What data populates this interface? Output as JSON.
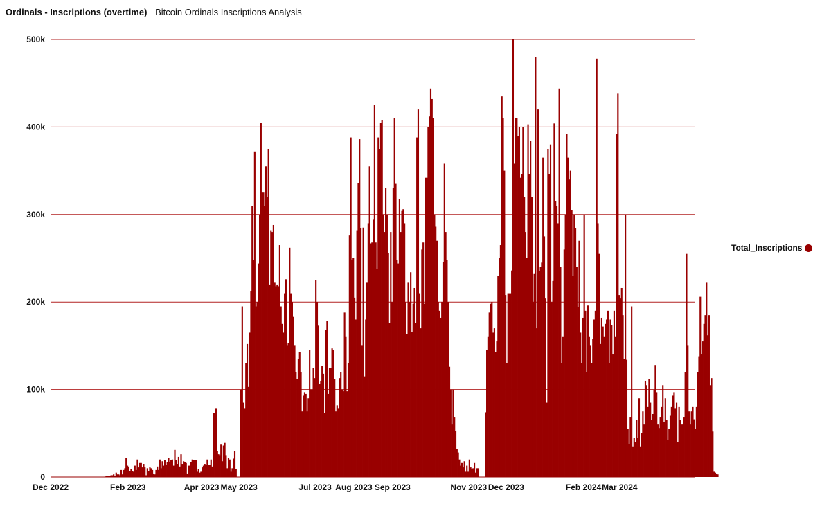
{
  "header": {
    "title": "Ordinals - Inscriptions (overtime)",
    "subtitle": "Bitcoin Ordinals Inscriptions Analysis"
  },
  "legend": {
    "label": "Total_Inscriptions",
    "color": "#990000"
  },
  "chart_data": {
    "type": "bar",
    "grid": true,
    "legend_position": "right",
    "bar_color": "#990000",
    "grid_color": "#b22222",
    "ylim": [
      0,
      500000
    ],
    "y_ticks": [
      {
        "value": 0,
        "label": "0"
      },
      {
        "value": 100000,
        "label": "100k"
      },
      {
        "value": 200000,
        "label": "200k"
      },
      {
        "value": 300000,
        "label": "300k"
      },
      {
        "value": 400000,
        "label": "400k"
      },
      {
        "value": 500000,
        "label": "500k"
      }
    ],
    "x_range": [
      "2022-12-01",
      "2024-04-30"
    ],
    "x_ticks": [
      {
        "date": "2022-12-01",
        "label": "Dec 2022"
      },
      {
        "date": "2023-02-01",
        "label": "Feb 2023"
      },
      {
        "date": "2023-04-01",
        "label": "Apr 2023"
      },
      {
        "date": "2023-05-01",
        "label": "May 2023"
      },
      {
        "date": "2023-07-01",
        "label": "Jul 2023"
      },
      {
        "date": "2023-08-01",
        "label": "Aug 2023"
      },
      {
        "date": "2023-09-01",
        "label": "Sep 2023"
      },
      {
        "date": "2023-11-01",
        "label": "Nov 2023"
      },
      {
        "date": "2023-12-01",
        "label": "Dec 2023"
      },
      {
        "date": "2024-02-01",
        "label": "Feb 2024"
      },
      {
        "date": "2024-03-01",
        "label": "Mar 2024"
      }
    ],
    "series": [
      {
        "name": "Total_Inscriptions",
        "start": "2022-12-14",
        "values": [
          0,
          0,
          0,
          0,
          0,
          0,
          0,
          0,
          0,
          0,
          0,
          0,
          0,
          0,
          0,
          0,
          0,
          0,
          0,
          0,
          0,
          0,
          0,
          0,
          0,
          0,
          0,
          0,
          0,
          0,
          0,
          1000,
          1000,
          1000,
          1000,
          2000,
          2000,
          3000,
          1000,
          5000,
          3000,
          3000,
          2000,
          8000,
          3000,
          8000,
          10000,
          22000,
          13000,
          12000,
          7000,
          9000,
          7000,
          6000,
          13000,
          8000,
          20000,
          11000,
          16000,
          16000,
          11000,
          15000,
          11000,
          2000,
          10000,
          7000,
          11000,
          10000,
          8000,
          4000,
          3000,
          8000,
          12000,
          8000,
          20000,
          10000,
          18000,
          13000,
          19000,
          14000,
          17000,
          22000,
          17000,
          19000,
          20000,
          13000,
          31000,
          19000,
          15000,
          23000,
          12000,
          26000,
          15000,
          18000,
          17000,
          16000,
          4000,
          13000,
          13000,
          17000,
          20000,
          19000,
          19000,
          19000,
          6000,
          9000,
          5000,
          6000,
          11000,
          13000,
          15000,
          14000,
          20000,
          14000,
          14000,
          20000,
          12000,
          73000,
          73000,
          78000,
          30000,
          26000,
          25000,
          37000,
          18000,
          36000,
          39000,
          25000,
          10000,
          22000,
          20000,
          6000,
          10000,
          21000,
          30000,
          9000,
          0,
          0,
          0,
          100000,
          195000,
          85000,
          78000,
          130000,
          152000,
          103000,
          165000,
          212000,
          310000,
          248000,
          372000,
          195000,
          200000,
          244000,
          300000,
          405000,
          325000,
          325000,
          310000,
          355000,
          320000,
          375000,
          220000,
          282000,
          280000,
          288000,
          222000,
          218000,
          220000,
          218000,
          265000,
          195000,
          175000,
          165000,
          210000,
          226000,
          150000,
          153000,
          262000,
          210000,
          200000,
          183000,
          150000,
          120000,
          112000,
          135000,
          143000,
          120000,
          75000,
          93000,
          97000,
          95000,
          75000,
          90000,
          145000,
          100000,
          100000,
          125000,
          113000,
          225000,
          200000,
          173000,
          106000,
          110000,
          127000,
          118000,
          73000,
          168000,
          178000,
          95000,
          125000,
          125000,
          147000,
          145000,
          112000,
          75000,
          82000,
          78000,
          113000,
          120000,
          100000,
          98000,
          188000,
          160000,
          98000,
          130000,
          276000,
          388000,
          248000,
          250000,
          205000,
          180000,
          282000,
          336000,
          386000,
          284000,
          150000,
          285000,
          115000,
          180000,
          222000,
          290000,
          355000,
          267000,
          268000,
          294000,
          425000,
          268000,
          238000,
          388000,
          375000,
          405000,
          408000,
          300000,
          280000,
          330000,
          300000,
          256000,
          176000,
          280000,
          200000,
          330000,
          410000,
          335000,
          248000,
          244000,
          318000,
          280000,
          304000,
          306000,
          290000,
          200000,
          163000,
          222000,
          200000,
          234000,
          166000,
          198000,
          216000,
          176000,
          388000,
          420000,
          210000,
          170000,
          260000,
          268000,
          198000,
          342000,
          342000,
          400000,
          412000,
          444000,
          432000,
          410000,
          300000,
          286000,
          270000,
          200000,
          190000,
          182000,
          200000,
          246000,
          358000,
          280000,
          248000,
          200000,
          126000,
          100000,
          60000,
          100000,
          68000,
          53000,
          32000,
          28000,
          20000,
          13000,
          16000,
          11000,
          18000,
          6000,
          13000,
          6000,
          20000,
          11000,
          9000,
          10000,
          16000,
          5000,
          10000,
          10000,
          0,
          0,
          0,
          0,
          0,
          74000,
          145000,
          160000,
          188000,
          198000,
          200000,
          165000,
          170000,
          143000,
          155000,
          230000,
          250000,
          265000,
          435000,
          410000,
          350000,
          208000,
          130000,
          210000,
          210000,
          210000,
          236000,
          500000,
          358000,
          410000,
          410000,
          390000,
          400000,
          342000,
          346000,
          400000,
          320000,
          280000,
          250000,
          403000,
          346000,
          384000,
          320000,
          200000,
          232000,
          480000,
          170000,
          420000,
          235000,
          240000,
          245000,
          365000,
          275000,
          204000,
          85000,
          375000,
          346000,
          380000,
          200000,
          224000,
          404000,
          315000,
          310000,
          290000,
          444000,
          240000,
          130000,
          160000,
          260000,
          300000,
          392000,
          365000,
          340000,
          350000,
          305000,
          230000,
          300000,
          284000,
          240000,
          194000,
          270000,
          165000,
          130000,
          182000,
          300000,
          190000,
          120000,
          196000,
          160000,
          150000,
          130000,
          158000,
          180000,
          190000,
          478000,
          290000,
          255000,
          152000,
          182000,
          172000,
          160000,
          175000,
          180000,
          190000,
          130000,
          180000,
          174000,
          140000,
          190000,
          160000,
          392000,
          438000,
          208000,
          204000,
          216000,
          185000,
          135000,
          300000,
          134000,
          55000,
          38000,
          68000,
          195000,
          35000,
          45000,
          40000,
          65000,
          45000,
          90000,
          35000,
          50000,
          75000,
          60000,
          110000,
          105000,
          80000,
          112000,
          85000,
          65000,
          72000,
          100000,
          128000,
          97000,
          60000,
          56000,
          68000,
          80000,
          105000,
          63000,
          90000,
          65000,
          42000,
          55000,
          70000,
          80000,
          93000,
          97000,
          78000,
          85000,
          40000,
          80000,
          65000,
          60000,
          60000,
          68000,
          120000,
          255000,
          150000,
          75000,
          60000,
          75000,
          80000,
          66000,
          55000,
          80000,
          120000,
          138000,
          206000,
          140000,
          155000,
          175000,
          185000,
          222000,
          162000,
          185000,
          105000,
          113000,
          52000,
          6000,
          5000,
          4000,
          3000
        ]
      }
    ]
  }
}
